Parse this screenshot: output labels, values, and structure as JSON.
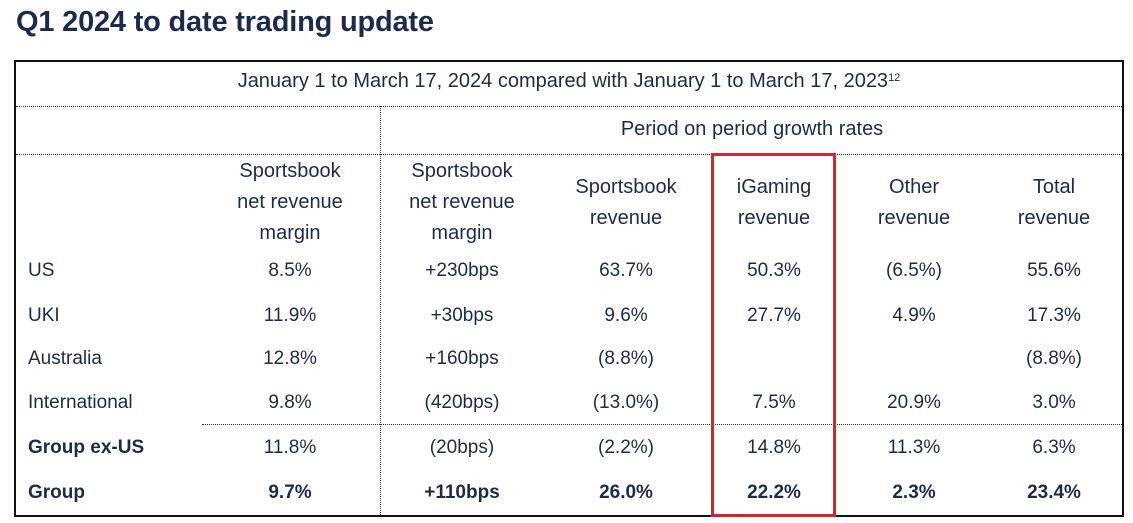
{
  "page": {
    "title": "Q1 2024 to date trading update"
  },
  "table": {
    "caption": "January 1 to March 17, 2024 compared with January 1 to March 17, 2023",
    "caption_sup": "12",
    "group_header": "Period on period growth rates",
    "columns": [
      [
        "Sportsbook",
        "net revenue",
        "margin"
      ],
      [
        "Sportsbook",
        "net revenue",
        "margin"
      ],
      [
        "Sportsbook",
        "revenue"
      ],
      [
        "iGaming",
        "revenue"
      ],
      [
        "Other",
        "revenue"
      ],
      [
        "Total",
        "revenue"
      ]
    ],
    "rows": [
      {
        "label": "US",
        "values": [
          "8.5%",
          "+230bps",
          "63.7%",
          "50.3%",
          "(6.5%)",
          "55.6%"
        ]
      },
      {
        "label": "UKI",
        "values": [
          "11.9%",
          "+30bps",
          "9.6%",
          "27.7%",
          "4.9%",
          "17.3%"
        ]
      },
      {
        "label": "Australia",
        "values": [
          "12.8%",
          "+160bps",
          "(8.8%)",
          "",
          "",
          "(8.8%)"
        ]
      },
      {
        "label": "International",
        "values": [
          "9.8%",
          "(420bps)",
          "(13.0%)",
          "7.5%",
          "20.9%",
          "3.0%"
        ]
      },
      {
        "label": "Group ex-US",
        "values": [
          "11.8%",
          "(20bps)",
          "(2.2%)",
          "14.8%",
          "11.3%",
          "6.3%"
        ]
      },
      {
        "label": "Group",
        "values": [
          "9.7%",
          "+110bps",
          "26.0%",
          "22.2%",
          "2.3%",
          "23.4%"
        ]
      }
    ]
  },
  "colors": {
    "title": "#1b2a4e",
    "text": "#1e2a4a",
    "highlight": "#d9232d"
  }
}
